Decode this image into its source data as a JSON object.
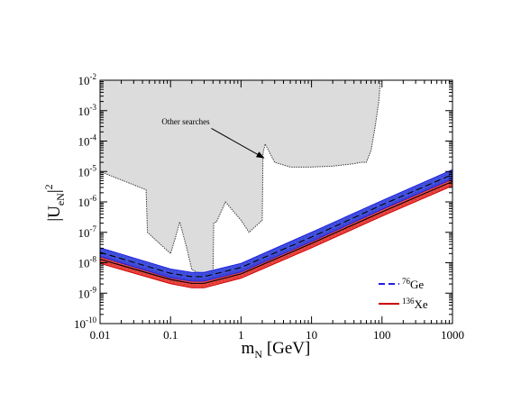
{
  "chart_data": {
    "type": "line",
    "xscale": "log",
    "yscale": "log",
    "xlim": [
      0.01,
      1000
    ],
    "ylim": [
      1e-10,
      0.01
    ],
    "grid": false,
    "xlabel": {
      "main": "m",
      "sub": "N",
      "unit": " [GeV]"
    },
    "ylabel": {
      "pre": "|U",
      "sub": "eN",
      "post": "|",
      "sup": "2"
    },
    "xticks": [
      {
        "value": 0.01,
        "label": "0.01"
      },
      {
        "value": 0.1,
        "label": "0.1"
      },
      {
        "value": 1,
        "label": "1"
      },
      {
        "value": 10,
        "label": "10"
      },
      {
        "value": 100,
        "label": "100"
      },
      {
        "value": 1000,
        "label": "1000"
      }
    ],
    "yticks": [
      {
        "value": 1e-10,
        "base": "10",
        "exp": "-10"
      },
      {
        "value": 1e-09,
        "base": "10",
        "exp": "-9"
      },
      {
        "value": 1e-08,
        "base": "10",
        "exp": "-8"
      },
      {
        "value": 1e-07,
        "base": "10",
        "exp": "-7"
      },
      {
        "value": 1e-06,
        "base": "10",
        "exp": "-6"
      },
      {
        "value": 1e-05,
        "base": "10",
        "exp": "-5"
      },
      {
        "value": 0.0001,
        "base": "10",
        "exp": "-4"
      },
      {
        "value": 0.001,
        "base": "10",
        "exp": "-3"
      },
      {
        "value": 0.01,
        "base": "10",
        "exp": "-2"
      }
    ],
    "other_searches": {
      "label": "Other searches",
      "fill_color": "#dcdcdc",
      "line_color": "#333333",
      "points": [
        [
          0.01,
          1e-05
        ],
        [
          0.045,
          2.5e-06
        ],
        [
          0.047,
          1e-07
        ],
        [
          0.1,
          2e-08
        ],
        [
          0.12,
          8e-08
        ],
        [
          0.135,
          2.2e-07
        ],
        [
          0.17,
          3e-08
        ],
        [
          0.2,
          6e-09
        ],
        [
          0.28,
          4e-09
        ],
        [
          0.4,
          4e-09
        ],
        [
          0.41,
          2e-07
        ],
        [
          0.45,
          2.2e-07
        ],
        [
          0.6,
          1e-06
        ],
        [
          1.0,
          2.5e-07
        ],
        [
          1.3,
          1e-07
        ],
        [
          2.0,
          2.5e-07
        ],
        [
          2.05,
          4e-05
        ],
        [
          2.2,
          8e-05
        ],
        [
          3.0,
          2e-05
        ],
        [
          5.0,
          1.4e-05
        ],
        [
          10,
          1.4e-05
        ],
        [
          20,
          1.5e-05
        ],
        [
          40,
          1.8e-05
        ],
        [
          50,
          2e-05
        ],
        [
          60,
          2e-05
        ],
        [
          70,
          5e-05
        ],
        [
          80,
          0.0003
        ],
        [
          90,
          0.002
        ],
        [
          95,
          0.01
        ]
      ]
    },
    "series": [
      {
        "name_base": "Ge",
        "name_sup": "76",
        "color": "#1f1fe0",
        "band_color": "#3a4bdb",
        "style": "dashed",
        "curve": [
          [
            0.01,
            2.2e-08
          ],
          [
            0.1,
            4.5e-09
          ],
          [
            0.2,
            3.5e-09
          ],
          [
            0.3,
            3.5e-09
          ],
          [
            1,
            7e-09
          ],
          [
            10,
            7e-08
          ],
          [
            100,
            8e-07
          ],
          [
            1000,
            8e-06
          ]
        ],
        "band_upper": [
          [
            0.01,
            3.1e-08
          ],
          [
            0.1,
            6.2e-09
          ],
          [
            0.2,
            4.8e-09
          ],
          [
            0.3,
            4.8e-09
          ],
          [
            1,
            9.5e-09
          ],
          [
            10,
            1e-07
          ],
          [
            100,
            1.1e-06
          ],
          [
            1000,
            1.15e-05
          ]
        ],
        "band_lower": [
          [
            0.01,
            1.6e-08
          ],
          [
            0.1,
            3.2e-09
          ],
          [
            0.2,
            2.5e-09
          ],
          [
            0.3,
            2.5e-09
          ],
          [
            1,
            5e-09
          ],
          [
            10,
            5e-08
          ],
          [
            100,
            5.7e-07
          ],
          [
            1000,
            5.7e-06
          ]
        ]
      },
      {
        "name_base": "Xe",
        "name_sup": "136",
        "color": "#cc0000",
        "band_color": "#e8403a",
        "style": "solid",
        "curve": [
          [
            0.01,
            1.3e-08
          ],
          [
            0.1,
            2.8e-09
          ],
          [
            0.2,
            2.1e-09
          ],
          [
            0.3,
            2.1e-09
          ],
          [
            1,
            4.3e-09
          ],
          [
            10,
            4.3e-08
          ],
          [
            100,
            4.7e-07
          ],
          [
            1000,
            4.7e-06
          ]
        ],
        "band_upper": [
          [
            0.01,
            1.75e-08
          ],
          [
            0.1,
            3.7e-09
          ],
          [
            0.2,
            2.9e-09
          ],
          [
            0.3,
            2.9e-09
          ],
          [
            1,
            5.8e-09
          ],
          [
            10,
            5.8e-08
          ],
          [
            100,
            6.4e-07
          ],
          [
            1000,
            6.4e-06
          ]
        ],
        "band_lower": [
          [
            0.01,
            9.5e-09
          ],
          [
            0.1,
            2.05e-09
          ],
          [
            0.2,
            1.5e-09
          ],
          [
            0.3,
            1.5e-09
          ],
          [
            1,
            3.1e-09
          ],
          [
            10,
            3.1e-08
          ],
          [
            100,
            3.4e-07
          ],
          [
            1000,
            3.4e-06
          ]
        ]
      }
    ],
    "legend": "bottom-right",
    "annotation": {
      "text": "Other searches",
      "arrow_to": [
        2.1,
        2.8e-05
      ],
      "text_at": [
        0.075,
        0.00035
      ]
    }
  }
}
